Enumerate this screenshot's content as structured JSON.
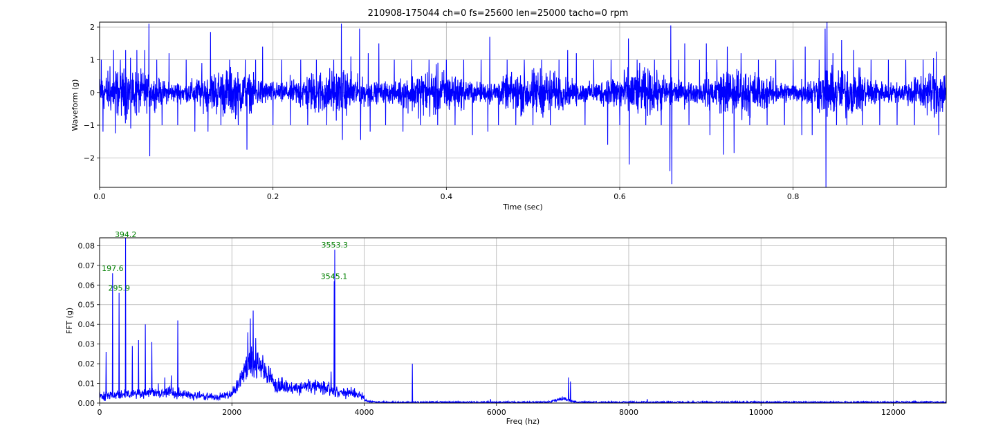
{
  "chart_data": [
    {
      "type": "line",
      "title": "210908-175044 ch=0 fs=25600 len=25000 tacho=0 rpm",
      "xlabel": "Time (sec)",
      "ylabel": "Waveform (g)",
      "xlim": [
        0,
        0.9766
      ],
      "ylim": [
        -2.9,
        2.15
      ],
      "xticks": [
        0,
        0.2,
        0.4,
        0.6,
        0.8
      ],
      "xtick_labels": [
        "0.0",
        "0.2",
        "0.4",
        "0.6",
        "0.8"
      ],
      "yticks": [
        -2,
        -1,
        0,
        1,
        2
      ],
      "ytick_labels": [
        "−2",
        "−1",
        "0",
        "1",
        "2"
      ],
      "grid": true,
      "line_color": "#0000ff",
      "baseline_amplitude": 0.35,
      "spikes": [
        {
          "x": 0.002,
          "y": 1.0
        },
        {
          "x": 0.004,
          "y": -1.2
        },
        {
          "x": 0.012,
          "y": 0.8
        },
        {
          "x": 0.016,
          "y": 1.3
        },
        {
          "x": 0.018,
          "y": -1.25
        },
        {
          "x": 0.024,
          "y": 1.0
        },
        {
          "x": 0.03,
          "y": 1.3
        },
        {
          "x": 0.036,
          "y": -1.1
        },
        {
          "x": 0.043,
          "y": 1.3
        },
        {
          "x": 0.052,
          "y": 1.3
        },
        {
          "x": 0.057,
          "y": 2.1
        },
        {
          "x": 0.058,
          "y": -1.95
        },
        {
          "x": 0.066,
          "y": 1.0
        },
        {
          "x": 0.072,
          "y": -1.0
        },
        {
          "x": 0.08,
          "y": 1.2
        },
        {
          "x": 0.09,
          "y": -1.0
        },
        {
          "x": 0.1,
          "y": 1.0
        },
        {
          "x": 0.11,
          "y": -1.2
        },
        {
          "x": 0.118,
          "y": 0.9
        },
        {
          "x": 0.125,
          "y": -1.2
        },
        {
          "x": 0.128,
          "y": 1.85
        },
        {
          "x": 0.14,
          "y": -1.0
        },
        {
          "x": 0.15,
          "y": 1.0
        },
        {
          "x": 0.16,
          "y": -1.0
        },
        {
          "x": 0.168,
          "y": 1.0
        },
        {
          "x": 0.17,
          "y": -1.75
        },
        {
          "x": 0.18,
          "y": 1.0
        },
        {
          "x": 0.188,
          "y": 1.4
        },
        {
          "x": 0.2,
          "y": -1.0
        },
        {
          "x": 0.21,
          "y": 1.0
        },
        {
          "x": 0.22,
          "y": -1.0
        },
        {
          "x": 0.232,
          "y": 1.0
        },
        {
          "x": 0.24,
          "y": -1.0
        },
        {
          "x": 0.25,
          "y": 1.0
        },
        {
          "x": 0.262,
          "y": -1.0
        },
        {
          "x": 0.27,
          "y": 1.0
        },
        {
          "x": 0.279,
          "y": 2.1
        },
        {
          "x": 0.28,
          "y": -1.45
        },
        {
          "x": 0.29,
          "y": 1.1
        },
        {
          "x": 0.3,
          "y": 1.95
        },
        {
          "x": 0.301,
          "y": -1.45
        },
        {
          "x": 0.31,
          "y": 1.2
        },
        {
          "x": 0.312,
          "y": -1.2
        },
        {
          "x": 0.322,
          "y": 1.5
        },
        {
          "x": 0.33,
          "y": -1.0
        },
        {
          "x": 0.34,
          "y": 1.0
        },
        {
          "x": 0.35,
          "y": -1.2
        },
        {
          "x": 0.36,
          "y": 1.0
        },
        {
          "x": 0.37,
          "y": -1.0
        },
        {
          "x": 0.38,
          "y": 1.0
        },
        {
          "x": 0.39,
          "y": -1.0
        },
        {
          "x": 0.4,
          "y": 1.0
        },
        {
          "x": 0.41,
          "y": -1.0
        },
        {
          "x": 0.42,
          "y": 1.0
        },
        {
          "x": 0.43,
          "y": -1.3
        },
        {
          "x": 0.44,
          "y": 1.0
        },
        {
          "x": 0.448,
          "y": -1.2
        },
        {
          "x": 0.45,
          "y": 1.7
        },
        {
          "x": 0.46,
          "y": -1.0
        },
        {
          "x": 0.47,
          "y": 1.0
        },
        {
          "x": 0.48,
          "y": -1.0
        },
        {
          "x": 0.49,
          "y": 1.0
        },
        {
          "x": 0.5,
          "y": -1.0
        },
        {
          "x": 0.51,
          "y": 1.0
        },
        {
          "x": 0.52,
          "y": -1.0
        },
        {
          "x": 0.53,
          "y": 1.0
        },
        {
          "x": 0.54,
          "y": -1.0
        },
        {
          "x": 0.54,
          "y": 1.3
        },
        {
          "x": 0.55,
          "y": 1.2
        },
        {
          "x": 0.56,
          "y": -1.0
        },
        {
          "x": 0.57,
          "y": 1.0
        },
        {
          "x": 0.586,
          "y": -1.6
        },
        {
          "x": 0.59,
          "y": 1.0
        },
        {
          "x": 0.6,
          "y": -1.0
        },
        {
          "x": 0.61,
          "y": 1.65
        },
        {
          "x": 0.611,
          "y": -2.2
        },
        {
          "x": 0.62,
          "y": 1.0
        },
        {
          "x": 0.63,
          "y": -1.0
        },
        {
          "x": 0.64,
          "y": 1.0
        },
        {
          "x": 0.648,
          "y": -1.0
        },
        {
          "x": 0.658,
          "y": -2.4
        },
        {
          "x": 0.659,
          "y": 2.05
        },
        {
          "x": 0.66,
          "y": -2.8
        },
        {
          "x": 0.668,
          "y": 1.0
        },
        {
          "x": 0.675,
          "y": 1.5
        },
        {
          "x": 0.68,
          "y": -1.0
        },
        {
          "x": 0.692,
          "y": 1.0
        },
        {
          "x": 0.7,
          "y": 1.5
        },
        {
          "x": 0.704,
          "y": -1.3
        },
        {
          "x": 0.712,
          "y": 1.0
        },
        {
          "x": 0.72,
          "y": -1.9
        },
        {
          "x": 0.724,
          "y": 1.4
        },
        {
          "x": 0.732,
          "y": -1.85
        },
        {
          "x": 0.74,
          "y": 1.2
        },
        {
          "x": 0.75,
          "y": -1.0
        },
        {
          "x": 0.76,
          "y": 1.0
        },
        {
          "x": 0.77,
          "y": -1.0
        },
        {
          "x": 0.78,
          "y": 1.0
        },
        {
          "x": 0.79,
          "y": -1.0
        },
        {
          "x": 0.8,
          "y": 1.0
        },
        {
          "x": 0.81,
          "y": -1.3
        },
        {
          "x": 0.814,
          "y": 1.4
        },
        {
          "x": 0.822,
          "y": -1.3
        },
        {
          "x": 0.83,
          "y": 1.0
        },
        {
          "x": 0.837,
          "y": 1.95
        },
        {
          "x": 0.838,
          "y": -2.9
        },
        {
          "x": 0.839,
          "y": 2.15
        },
        {
          "x": 0.846,
          "y": 1.2
        },
        {
          "x": 0.85,
          "y": -1.0
        },
        {
          "x": 0.856,
          "y": 1.6
        },
        {
          "x": 0.862,
          "y": -1.0
        },
        {
          "x": 0.87,
          "y": 1.3
        },
        {
          "x": 0.88,
          "y": -1.0
        },
        {
          "x": 0.89,
          "y": 1.0
        },
        {
          "x": 0.9,
          "y": -1.0
        },
        {
          "x": 0.91,
          "y": 1.0
        },
        {
          "x": 0.92,
          "y": -1.0
        },
        {
          "x": 0.93,
          "y": 1.0
        },
        {
          "x": 0.94,
          "y": -1.0
        },
        {
          "x": 0.95,
          "y": 1.0
        },
        {
          "x": 0.962,
          "y": 1.05
        },
        {
          "x": 0.965,
          "y": 1.25
        },
        {
          "x": 0.968,
          "y": -1.3
        },
        {
          "x": 0.974,
          "y": 0.5
        }
      ]
    },
    {
      "type": "line",
      "xlabel": "Freq (hz)",
      "ylabel": "FFT (g)",
      "xlim": [
        0,
        12800
      ],
      "ylim": [
        0,
        0.084
      ],
      "xticks": [
        0,
        2000,
        4000,
        6000,
        8000,
        10000,
        12000
      ],
      "xtick_labels": [
        "0",
        "2000",
        "4000",
        "6000",
        "8000",
        "10000",
        "12000"
      ],
      "yticks": [
        0,
        0.01,
        0.02,
        0.03,
        0.04,
        0.05,
        0.06,
        0.07,
        0.08
      ],
      "ytick_labels": [
        "0.00",
        "0.01",
        "0.02",
        "0.03",
        "0.04",
        "0.05",
        "0.06",
        "0.07",
        "0.08"
      ],
      "grid": true,
      "line_color": "#0000ff",
      "annotation_color": "#008000",
      "peaks": [
        {
          "x": 98.6,
          "y": 0.026
        },
        {
          "x": 197.6,
          "y": 0.066
        },
        {
          "x": 295.9,
          "y": 0.056
        },
        {
          "x": 394.2,
          "y": 0.084
        },
        {
          "x": 493,
          "y": 0.029
        },
        {
          "x": 591,
          "y": 0.032
        },
        {
          "x": 690,
          "y": 0.04
        },
        {
          "x": 788,
          "y": 0.031
        },
        {
          "x": 886,
          "y": 0.01
        },
        {
          "x": 985,
          "y": 0.013
        },
        {
          "x": 1084,
          "y": 0.014
        },
        {
          "x": 1182,
          "y": 0.042
        },
        {
          "x": 2240,
          "y": 0.036
        },
        {
          "x": 2280,
          "y": 0.043
        },
        {
          "x": 2320,
          "y": 0.047
        },
        {
          "x": 2360,
          "y": 0.033
        },
        {
          "x": 3500,
          "y": 0.016
        },
        {
          "x": 3545.1,
          "y": 0.062
        },
        {
          "x": 3553.3,
          "y": 0.078
        },
        {
          "x": 4730,
          "y": 0.02
        },
        {
          "x": 7090,
          "y": 0.013
        },
        {
          "x": 7120,
          "y": 0.011
        },
        {
          "x": 8280,
          "y": 0.002
        },
        {
          "x": 5910,
          "y": 0.002
        }
      ],
      "humps": [
        {
          "center": 2320,
          "width": 220,
          "height": 0.018
        },
        {
          "center": 2600,
          "width": 450,
          "height": 0.008
        },
        {
          "center": 3300,
          "width": 350,
          "height": 0.007
        },
        {
          "center": 800,
          "width": 900,
          "height": 0.004
        },
        {
          "center": 3800,
          "width": 200,
          "height": 0.003
        },
        {
          "center": 7000,
          "width": 150,
          "height": 0.002
        }
      ],
      "annotations": [
        {
          "text": "394.2",
          "x": 394.2,
          "y": 0.084
        },
        {
          "text": "197.6",
          "x": 197.6,
          "y": 0.066
        },
        {
          "text": "295.9",
          "x": 295.9,
          "y": 0.056
        },
        {
          "text": "3553.3",
          "x": 3553.3,
          "y": 0.078
        },
        {
          "text": "3545.1",
          "x": 3545.1,
          "y": 0.062
        }
      ]
    }
  ]
}
